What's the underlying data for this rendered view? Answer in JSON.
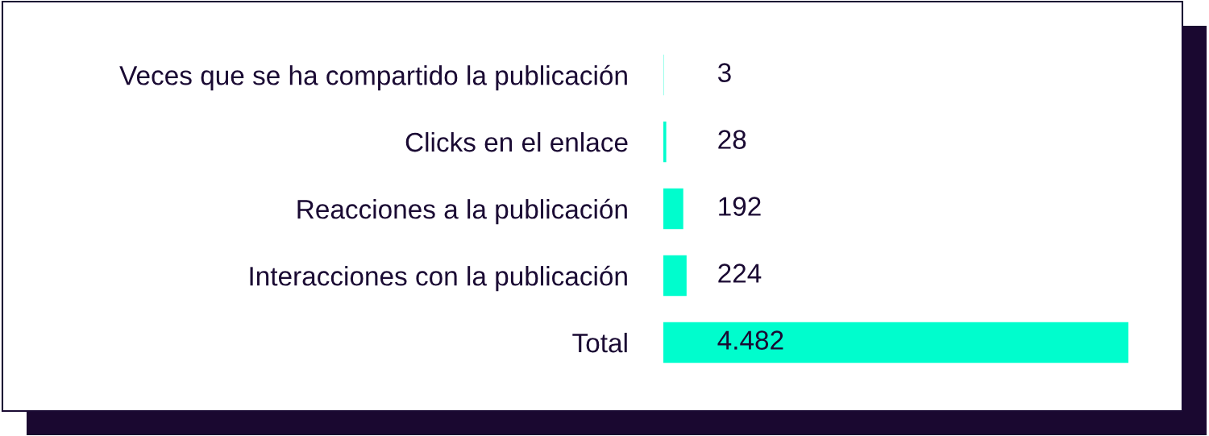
{
  "chart_data": {
    "type": "bar",
    "orientation": "horizontal",
    "categories": [
      "Veces que se ha compartido la publicación",
      "Clicks en el enlace",
      "Reacciones a la publicación",
      "Interacciones con la publicación",
      "Total"
    ],
    "values": [
      3,
      28,
      192,
      224,
      4482
    ],
    "value_labels": [
      "3",
      "28",
      "192",
      "224",
      "4.482"
    ],
    "color": "#00fdcd",
    "tick_labels": "y",
    "grid": false,
    "legend": false
  }
}
